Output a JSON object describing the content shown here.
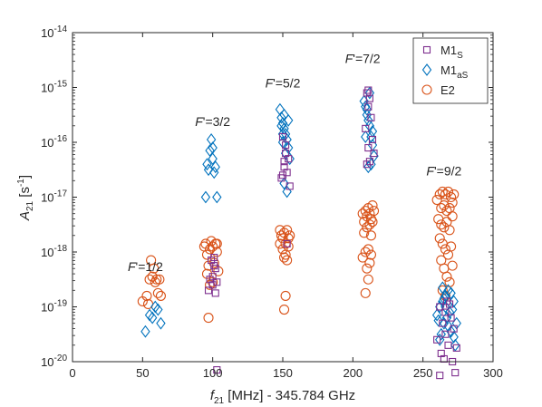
{
  "chart_data": {
    "type": "scatter",
    "xlabel": {
      "main": "f",
      "sub": "21",
      "rest": " [MHz] - 345.784 GHz"
    },
    "ylabel": {
      "main": "A",
      "sub": "21",
      "rest": " [s",
      "sup": "-1",
      "close": "]"
    },
    "xlim": [
      0,
      300
    ],
    "ylim_log10": [
      -20,
      -14
    ],
    "y_scale": "log",
    "grid": false,
    "legend_position": "top-right",
    "x_ticks": [
      {
        "v": 0,
        "label": "0"
      },
      {
        "v": 50,
        "label": "50"
      },
      {
        "v": 100,
        "label": "100"
      },
      {
        "v": 150,
        "label": "150"
      },
      {
        "v": 200,
        "label": "200"
      },
      {
        "v": 250,
        "label": "250"
      },
      {
        "v": 300,
        "label": "300"
      }
    ],
    "y_ticks": [
      {
        "v": -20,
        "base": "10",
        "exp": "-20"
      },
      {
        "v": -19,
        "base": "10",
        "exp": "-19"
      },
      {
        "v": -18,
        "base": "10",
        "exp": "-18"
      },
      {
        "v": -17,
        "base": "10",
        "exp": "-17"
      },
      {
        "v": -16,
        "base": "10",
        "exp": "-16"
      },
      {
        "v": -15,
        "base": "10",
        "exp": "-15"
      },
      {
        "v": -14,
        "base": "10",
        "exp": "-14"
      }
    ],
    "annotations": [
      {
        "text": "F'=1/2",
        "x": 52,
        "y_log": -18.35
      },
      {
        "text": "F'=3/2",
        "x": 100,
        "y_log": -15.7
      },
      {
        "text": "F'=5/2",
        "x": 150,
        "y_log": -15.0
      },
      {
        "text": "F'=7/2",
        "x": 207,
        "y_log": -14.55
      },
      {
        "text": "F'=9/2",
        "x": 265,
        "y_log": -16.6
      }
    ],
    "series": [
      {
        "name": "M1",
        "name_sub": "S",
        "marker": "square",
        "color": "#7E2F8E",
        "points_log10": [
          [
            98,
            -18.5
          ],
          [
            100,
            -18.45
          ],
          [
            101,
            -18.1
          ],
          [
            99,
            -18.15
          ],
          [
            102,
            -18.3
          ],
          [
            100,
            -18.6
          ],
          [
            103,
            -18.55
          ],
          [
            97,
            -18.7
          ],
          [
            101,
            -18.25
          ],
          [
            102,
            -18.75
          ],
          [
            103,
            -20.15
          ],
          [
            150,
            -15.9
          ],
          [
            152,
            -16.05
          ],
          [
            154,
            -16.3
          ],
          [
            151,
            -16.45
          ],
          [
            153,
            -16.55
          ],
          [
            149,
            -16.65
          ],
          [
            155,
            -16.8
          ],
          [
            152,
            -16.2
          ],
          [
            150,
            -16.6
          ],
          [
            153,
            -17.85
          ],
          [
            151,
            -16.35
          ],
          [
            210,
            -15.1
          ],
          [
            212,
            -15.2
          ],
          [
            211,
            -15.35
          ],
          [
            213,
            -15.55
          ],
          [
            209,
            -15.75
          ],
          [
            214,
            -15.95
          ],
          [
            211,
            -16.1
          ],
          [
            212,
            -16.35
          ],
          [
            215,
            -16.2
          ],
          [
            210,
            -16.4
          ],
          [
            211,
            -15.05
          ],
          [
            262,
            -19.0
          ],
          [
            264,
            -19.3
          ],
          [
            266,
            -19.5
          ],
          [
            268,
            -19.7
          ],
          [
            263,
            -19.85
          ],
          [
            270,
            -19.2
          ],
          [
            272,
            -19.4
          ],
          [
            265,
            -19.95
          ],
          [
            267,
            -18.9
          ],
          [
            271,
            -20.0
          ],
          [
            260,
            -19.6
          ],
          [
            274,
            -19.75
          ],
          [
            262,
            -20.25
          ],
          [
            273,
            -20.2
          ],
          [
            266,
            -19.1
          ],
          [
            269,
            -18.95
          ]
        ]
      },
      {
        "name": "M1",
        "name_sub": "aS",
        "marker": "diamond",
        "color": "#0072BD",
        "points_log10": [
          [
            52,
            -19.45
          ],
          [
            55,
            -19.15
          ],
          [
            57,
            -19.2
          ],
          [
            59,
            -19.0
          ],
          [
            61,
            -19.05
          ],
          [
            63,
            -19.3
          ],
          [
            95,
            -17.0
          ],
          [
            96,
            -16.4
          ],
          [
            98,
            -16.15
          ],
          [
            99,
            -15.95
          ],
          [
            100,
            -16.3
          ],
          [
            101,
            -16.55
          ],
          [
            102,
            -16.45
          ],
          [
            103,
            -17.0
          ],
          [
            100,
            -16.1
          ],
          [
            97,
            -16.5
          ],
          [
            148,
            -15.4
          ],
          [
            149,
            -15.55
          ],
          [
            150,
            -15.65
          ],
          [
            151,
            -15.75
          ],
          [
            152,
            -15.85
          ],
          [
            153,
            -15.95
          ],
          [
            154,
            -16.1
          ],
          [
            155,
            -16.3
          ],
          [
            150,
            -16.0
          ],
          [
            152,
            -16.2
          ],
          [
            153,
            -16.9
          ],
          [
            151,
            -16.75
          ],
          [
            149,
            -15.7
          ],
          [
            154,
            -15.6
          ],
          [
            151,
            -15.5
          ],
          [
            150,
            -15.85
          ],
          [
            208,
            -15.25
          ],
          [
            209,
            -15.35
          ],
          [
            210,
            -15.5
          ],
          [
            211,
            -15.6
          ],
          [
            212,
            -15.7
          ],
          [
            213,
            -15.9
          ],
          [
            214,
            -16.05
          ],
          [
            215,
            -16.25
          ],
          [
            209,
            -15.9
          ],
          [
            211,
            -16.45
          ],
          [
            213,
            -16.4
          ],
          [
            212,
            -15.1
          ],
          [
            210,
            -15.4
          ],
          [
            214,
            -15.8
          ],
          [
            260,
            -19.15
          ],
          [
            262,
            -19.0
          ],
          [
            264,
            -18.9
          ],
          [
            266,
            -18.8
          ],
          [
            268,
            -18.7
          ],
          [
            270,
            -18.75
          ],
          [
            272,
            -18.9
          ],
          [
            263,
            -19.5
          ],
          [
            265,
            -19.3
          ],
          [
            267,
            -19.2
          ],
          [
            269,
            -19.1
          ],
          [
            271,
            -19.05
          ],
          [
            262,
            -19.6
          ],
          [
            273,
            -19.7
          ],
          [
            264,
            -18.65
          ],
          [
            266,
            -19.0
          ],
          [
            268,
            -19.35
          ],
          [
            270,
            -19.45
          ],
          [
            272,
            -19.55
          ],
          [
            261,
            -19.25
          ],
          [
            265,
            -18.85
          ],
          [
            274,
            -19.3
          ]
        ]
      },
      {
        "name": "E2",
        "name_sub": "",
        "marker": "circle",
        "color": "#D95319",
        "points_log10": [
          [
            50,
            -18.9
          ],
          [
            53,
            -18.8
          ],
          [
            55,
            -18.5
          ],
          [
            57,
            -18.45
          ],
          [
            58,
            -18.3
          ],
          [
            59,
            -18.55
          ],
          [
            60,
            -18.5
          ],
          [
            61,
            -18.75
          ],
          [
            62,
            -18.5
          ],
          [
            56,
            -18.15
          ],
          [
            63,
            -18.8
          ],
          [
            54,
            -18.95
          ],
          [
            94,
            -17.9
          ],
          [
            95,
            -17.85
          ],
          [
            96,
            -18.05
          ],
          [
            97,
            -18.25
          ],
          [
            98,
            -17.95
          ],
          [
            99,
            -17.8
          ],
          [
            100,
            -17.9
          ],
          [
            101,
            -18.2
          ],
          [
            102,
            -17.85
          ],
          [
            103,
            -18.0
          ],
          [
            104,
            -18.35
          ],
          [
            96,
            -18.4
          ],
          [
            98,
            -18.6
          ],
          [
            100,
            -18.55
          ],
          [
            97,
            -19.2
          ],
          [
            103,
            -17.85
          ],
          [
            148,
            -17.6
          ],
          [
            149,
            -17.7
          ],
          [
            150,
            -17.75
          ],
          [
            151,
            -17.65
          ],
          [
            152,
            -17.85
          ],
          [
            153,
            -17.6
          ],
          [
            154,
            -17.75
          ],
          [
            155,
            -17.7
          ],
          [
            150,
            -17.95
          ],
          [
            152,
            -18.05
          ],
          [
            154,
            -17.9
          ],
          [
            151,
            -18.1
          ],
          [
            153,
            -18.15
          ],
          [
            148,
            -17.85
          ],
          [
            152,
            -18.8
          ],
          [
            151,
            -19.05
          ],
          [
            207,
            -17.3
          ],
          [
            208,
            -17.45
          ],
          [
            209,
            -17.25
          ],
          [
            210,
            -17.35
          ],
          [
            211,
            -17.2
          ],
          [
            212,
            -17.3
          ],
          [
            213,
            -17.4
          ],
          [
            214,
            -17.15
          ],
          [
            215,
            -17.25
          ],
          [
            208,
            -17.65
          ],
          [
            210,
            -17.55
          ],
          [
            212,
            -17.5
          ],
          [
            214,
            -17.45
          ],
          [
            209,
            -18.0
          ],
          [
            211,
            -17.95
          ],
          [
            213,
            -18.05
          ],
          [
            207,
            -18.1
          ],
          [
            210,
            -18.3
          ],
          [
            212,
            -18.2
          ],
          [
            211,
            -18.5
          ],
          [
            209,
            -18.75
          ],
          [
            213,
            -17.7
          ],
          [
            260,
            -17.05
          ],
          [
            262,
            -16.95
          ],
          [
            264,
            -16.9
          ],
          [
            266,
            -16.95
          ],
          [
            268,
            -16.9
          ],
          [
            270,
            -17.0
          ],
          [
            272,
            -16.95
          ],
          [
            263,
            -17.2
          ],
          [
            265,
            -17.15
          ],
          [
            267,
            -17.25
          ],
          [
            269,
            -17.2
          ],
          [
            271,
            -17.1
          ],
          [
            261,
            -17.4
          ],
          [
            263,
            -17.5
          ],
          [
            265,
            -17.55
          ],
          [
            267,
            -17.45
          ],
          [
            269,
            -17.6
          ],
          [
            271,
            -17.35
          ],
          [
            262,
            -17.75
          ],
          [
            264,
            -17.85
          ],
          [
            266,
            -17.95
          ],
          [
            268,
            -18.05
          ],
          [
            270,
            -17.9
          ],
          [
            263,
            -18.15
          ],
          [
            265,
            -18.3
          ],
          [
            267,
            -18.45
          ],
          [
            269,
            -18.55
          ],
          [
            271,
            -18.25
          ],
          [
            264,
            -18.7
          ],
          [
            266,
            -18.8
          ]
        ]
      }
    ]
  }
}
